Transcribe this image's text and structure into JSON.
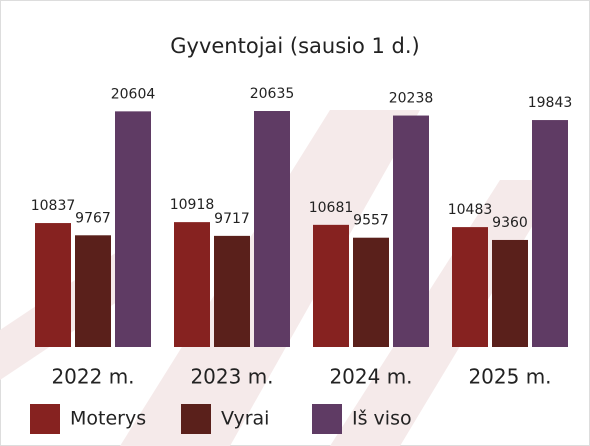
{
  "chart_data": {
    "type": "bar",
    "title": "Gyventojai (sausio 1 d.)",
    "categories": [
      "2022 m.",
      "2023 m.",
      "2024 m.",
      "2025 m."
    ],
    "series": [
      {
        "name": "Moterys",
        "color": "#862220",
        "values": [
          10837,
          10918,
          10681,
          10483
        ]
      },
      {
        "name": "Vyrai",
        "color": "#5a201b",
        "values": [
          9767,
          9717,
          9557,
          9360
        ]
      },
      {
        "name": "Iš viso",
        "color": "#5f3b64",
        "values": [
          20604,
          20635,
          20238,
          19843
        ]
      }
    ]
  }
}
